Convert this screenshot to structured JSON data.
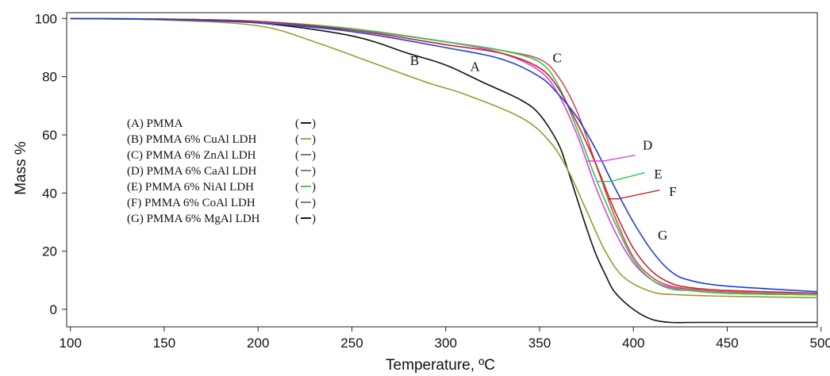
{
  "chart_data": {
    "type": "line",
    "xlabel": "Temperature, ºC",
    "ylabel": "Mass %",
    "xlim": [
      98,
      498
    ],
    "ylim": [
      -6,
      102
    ],
    "xticks": [
      100,
      150,
      200,
      250,
      300,
      350,
      400,
      450,
      500
    ],
    "yticks": [
      0,
      20,
      40,
      60,
      80,
      100
    ],
    "xtick_labels": [
      "100",
      "150",
      "200",
      "250",
      "300",
      "350",
      "400",
      "450",
      "500"
    ],
    "ytick_labels": [
      "0",
      "20",
      "40",
      "60",
      "80",
      "100"
    ],
    "grid": false,
    "legend_entries": [
      {
        "label": "(A) PMMA",
        "marker": "(—)",
        "color": "#000000"
      },
      {
        "label": "(B) PMMA 6% CuAl LDH",
        "marker": "(—)",
        "color": "#9a9a30"
      },
      {
        "label": "(C) PMMA 6% ZnAl LDH",
        "marker": "(—)",
        "color": "#6a6a6a"
      },
      {
        "label": "(D) PMMA 6% CaAl LDH",
        "marker": "(—)",
        "color": "#777777"
      },
      {
        "label": "(E) PMMA 6% NiAl LDH",
        "marker": "(—)",
        "color": "#2ec84a"
      },
      {
        "label": "(F) PMMA 6% CoAl LDH",
        "marker": "(—)",
        "color": "#707070"
      },
      {
        "label": "(G) PMMA 6% MgAl LDH",
        "marker": "(—)",
        "color": "#000000"
      }
    ],
    "series": [
      {
        "id": "A",
        "color": "#111111",
        "x": [
          100,
          150,
          200,
          250,
          280,
          300,
          320,
          340,
          350,
          360,
          365,
          370,
          375,
          380,
          385,
          390,
          400,
          410,
          420,
          430,
          450,
          500
        ],
        "y": [
          100,
          99.6,
          98.5,
          94,
          88,
          84,
          78,
          72,
          67,
          57,
          48,
          38,
          28,
          19,
          12,
          6,
          0,
          -3.5,
          -4.5,
          -4.5,
          -4.5,
          -4.5
        ]
      },
      {
        "id": "B",
        "color": "#9a9a30",
        "x": [
          100,
          150,
          200,
          230,
          260,
          290,
          310,
          340,
          355,
          365,
          375,
          385,
          395,
          410,
          425,
          450,
          500
        ],
        "y": [
          100,
          99.5,
          97.5,
          92,
          85,
          78,
          74,
          66,
          58,
          48,
          34,
          20,
          11,
          6,
          5,
          4.5,
          4
        ]
      },
      {
        "id": "C",
        "color": "#d8465a",
        "x": [
          100,
          150,
          200,
          250,
          300,
          330,
          350,
          360,
          370,
          380,
          390,
          400,
          410,
          420,
          430,
          450,
          500
        ],
        "y": [
          100,
          99.8,
          99,
          96.5,
          92,
          89,
          86,
          80,
          68,
          50,
          32,
          18,
          11,
          8,
          7,
          6,
          5
        ]
      },
      {
        "id": "D",
        "color": "#e040e0",
        "x": [
          100,
          150,
          200,
          250,
          300,
          330,
          350,
          360,
          370,
          380,
          390,
          400,
          410,
          420,
          430,
          450,
          500
        ],
        "y": [
          100,
          99.7,
          98.5,
          96,
          92,
          88,
          82,
          74,
          60,
          42,
          27,
          16,
          10,
          7.5,
          6.5,
          5.5,
          5
        ]
      },
      {
        "id": "E",
        "color": "#2ec84a",
        "x": [
          100,
          150,
          200,
          250,
          300,
          330,
          350,
          360,
          370,
          380,
          390,
          400,
          410,
          420,
          430,
          450,
          500
        ],
        "y": [
          100,
          99.8,
          99,
          96.5,
          92,
          89,
          85,
          77,
          62,
          45,
          30,
          17,
          10,
          7,
          6.5,
          5.5,
          5
        ]
      },
      {
        "id": "F",
        "color": "#c02828",
        "x": [
          100,
          150,
          200,
          250,
          300,
          330,
          350,
          360,
          370,
          380,
          390,
          400,
          410,
          420,
          430,
          450,
          500
        ],
        "y": [
          100,
          99.8,
          99,
          96,
          91,
          88,
          83,
          76,
          64,
          50,
          34,
          21,
          13,
          9,
          7.5,
          6.5,
          5.5
        ]
      },
      {
        "id": "G",
        "color": "#1f3fd8",
        "x": [
          100,
          150,
          200,
          250,
          300,
          330,
          350,
          360,
          370,
          380,
          390,
          400,
          410,
          420,
          430,
          450,
          500
        ],
        "y": [
          100,
          99.7,
          98.5,
          95.5,
          90,
          86,
          80,
          74,
          66,
          55,
          42,
          30,
          20,
          13,
          10,
          8,
          6
        ]
      }
    ],
    "curve_labels": [
      {
        "text": "B",
        "x": 281,
        "y": 84
      },
      {
        "text": "A",
        "x": 313,
        "y": 82
      },
      {
        "text": "C",
        "x": 357,
        "y": 85
      },
      {
        "text": "D",
        "x": 405,
        "y": 55
      },
      {
        "text": "E",
        "x": 411,
        "y": 45
      },
      {
        "text": "F",
        "x": 419,
        "y": 39
      },
      {
        "text": "G",
        "x": 413,
        "y": 24
      }
    ],
    "label_leaders": [
      {
        "id": "D",
        "color": "#e040e0",
        "x": [
          375.5,
          384,
          401
        ],
        "y": [
          51,
          51,
          53
        ]
      },
      {
        "id": "E",
        "color": "#2ec84a",
        "x": [
          380.5,
          388,
          406
        ],
        "y": [
          44,
          44,
          47
        ]
      },
      {
        "id": "F",
        "color": "#c02828",
        "x": [
          386.5,
          392,
          414
        ],
        "y": [
          38,
          38,
          41
        ]
      }
    ]
  }
}
